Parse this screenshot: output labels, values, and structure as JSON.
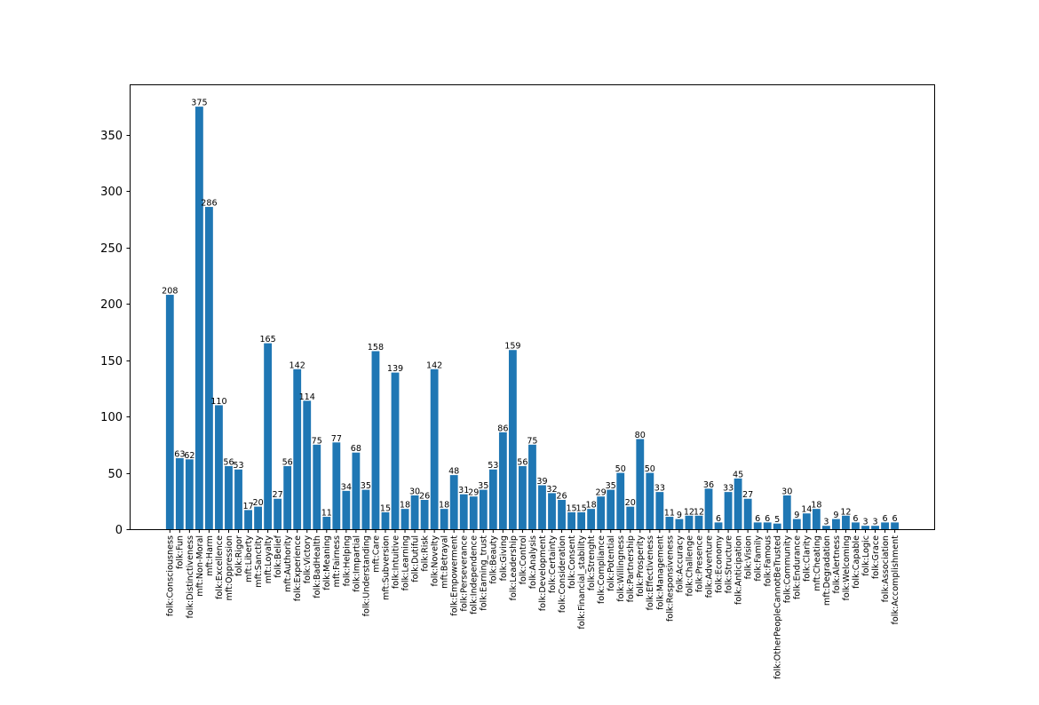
{
  "chart_data": {
    "type": "bar",
    "title": "",
    "xlabel": "",
    "ylabel": "",
    "ylim": [
      0,
      394
    ],
    "yticks": [
      0,
      50,
      100,
      150,
      200,
      250,
      300,
      350
    ],
    "grid": false,
    "bar_color": "#1f77b4",
    "categories": [
      "folk:Consciousness",
      "folk:Fun",
      "folk:Distinctiveness",
      "mft:Non-Moral",
      "mft:Harm",
      "folk:Excellence",
      "mft:Oppression",
      "folk:Rigor",
      "mft:Liberty",
      "mft:Sanctity",
      "mft:Loyalty",
      "folk:Belief",
      "mft:Authority",
      "folk:Experience",
      "folk:Victory",
      "folk:BadHealth",
      "folk:Meaning",
      "mft:Fairness",
      "folk:Helping",
      "folk:Impartial",
      "folk:Understanding",
      "mft:Care",
      "mft:Subversion",
      "folk:Intuitive",
      "folk:Learning",
      "folk:Dutiful",
      "folk:Risk",
      "folk:Novelty",
      "mft:Betrayal",
      "folk:Empowerment",
      "folk:Perseverance",
      "folk:Independence",
      "folk:Earning_trust",
      "folk:Beauty",
      "folk:Giving",
      "folk:Leadership",
      "folk:Control",
      "folk:Analysis",
      "folk:Development",
      "folk:Certainty",
      "folk:Consideration",
      "folk:Consent",
      "folk:Financial_stability",
      "folk:Strenght",
      "folk:Compliance",
      "folk:Potential",
      "folk:Willingness",
      "folk:Partnership",
      "folk:Prosperity",
      "folk:Effectiveness",
      "folk:Management",
      "folk:Responsiveness",
      "folk:Accuracy",
      "folk:Challenge",
      "folk:Presence",
      "folk:Adventure",
      "folk:Economy",
      "folk:Structure",
      "folk:Anticipation",
      "folk:Vision",
      "folk:Family",
      "folk:Famous",
      "folk:OtherPeopleCannotBeTrusted",
      "folk:Community",
      "folk:Endurance",
      "folk:Clarity",
      "mft:Cheating",
      "mft:Degradation",
      "folk:Alertness",
      "folk:Welcoming",
      "folk:Capable",
      "folk:Logic",
      "folk:Grace",
      "folk:Association",
      "folk:Accomplishment"
    ],
    "values": [
      208,
      63,
      62,
      375,
      286,
      110,
      56,
      53,
      17,
      20,
      165,
      27,
      56,
      142,
      114,
      75,
      11,
      77,
      34,
      68,
      35,
      158,
      15,
      139,
      18,
      30,
      26,
      142,
      18,
      48,
      31,
      29,
      35,
      53,
      86,
      159,
      56,
      75,
      39,
      32,
      26,
      15,
      15,
      18,
      29,
      35,
      50,
      20,
      80,
      50,
      33,
      11,
      9,
      12,
      12,
      36,
      6,
      33,
      45,
      27,
      6,
      6,
      5,
      30,
      9,
      14,
      18,
      3,
      9,
      12,
      6,
      3,
      3,
      6,
      6
    ]
  }
}
